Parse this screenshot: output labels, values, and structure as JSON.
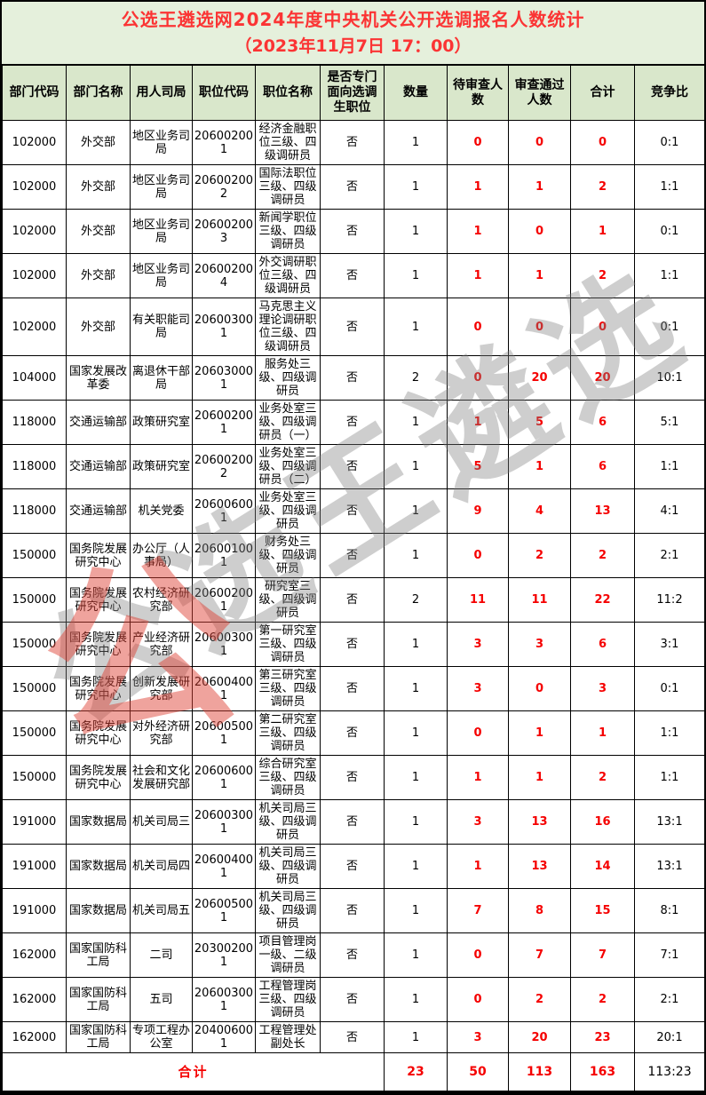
{
  "title": {
    "line1": "公选王遴选网2024年度中央机关公开选调报名人数统计",
    "line2": "（2023年11月7日 17：00）"
  },
  "table": {
    "headers": [
      "部门代码",
      "部门名称",
      "用人司局",
      "职位代码",
      "职位名称",
      "是否专门面向选调生职位",
      "数量",
      "待审查人数",
      "审查通过人数",
      "合计",
      "竞争比"
    ],
    "col_keys": [
      "dept-code",
      "dept-name",
      "bureau",
      "position-code",
      "position-name",
      "special-flag",
      "quantity",
      "pending-count",
      "passed-count",
      "total-count",
      "ratio"
    ],
    "rows": [
      [
        "102000",
        "外交部",
        "地区业务司局",
        "206002001",
        "经济金融职位三级、四级调研员",
        "否",
        "1",
        "0",
        "0",
        "0",
        "0:1"
      ],
      [
        "102000",
        "外交部",
        "地区业务司局",
        "206002002",
        "国际法职位三级、四级调研员",
        "否",
        "1",
        "1",
        "1",
        "2",
        "1:1"
      ],
      [
        "102000",
        "外交部",
        "地区业务司局",
        "206002003",
        "新闻学职位三级、四级调研员",
        "否",
        "1",
        "1",
        "0",
        "1",
        "0:1"
      ],
      [
        "102000",
        "外交部",
        "地区业务司局",
        "206002004",
        "外交调研职位三级、四级调研员",
        "否",
        "1",
        "1",
        "1",
        "2",
        "1:1"
      ],
      [
        "102000",
        "外交部",
        "有关职能司局",
        "206003001",
        "马克思主义理论调研职位三级、四级调研员",
        "否",
        "1",
        "0",
        "0",
        "0",
        "0:1"
      ],
      [
        "104000",
        "国家发展改革委",
        "离退休干部局",
        "206030001",
        "服务处三级、四级调研员",
        "否",
        "2",
        "0",
        "20",
        "20",
        "10:1"
      ],
      [
        "118000",
        "交通运输部",
        "政策研究室",
        "206002001",
        "业务处室三级、四级调研员（一）",
        "否",
        "1",
        "1",
        "5",
        "6",
        "5:1"
      ],
      [
        "118000",
        "交通运输部",
        "政策研究室",
        "206002002",
        "业务处室三级、四级调研员（二）",
        "否",
        "1",
        "5",
        "1",
        "6",
        "1:1"
      ],
      [
        "118000",
        "交通运输部",
        "机关党委",
        "206006001",
        "业务处室三级、四级调研员",
        "否",
        "1",
        "9",
        "4",
        "13",
        "4:1"
      ],
      [
        "150000",
        "国务院发展研究中心",
        "办公厅（人事局）",
        "206001001",
        "财务处三级、四级调研员",
        "否",
        "1",
        "0",
        "2",
        "2",
        "2:1"
      ],
      [
        "150000",
        "国务院发展研究中心",
        "农村经济研究部",
        "206002001",
        "研究室三级、四级调研员",
        "否",
        "2",
        "11",
        "11",
        "22",
        "11:2"
      ],
      [
        "150000",
        "国务院发展研究中心",
        "产业经济研究部",
        "206003001",
        "第一研究室三级、四级调研员",
        "否",
        "1",
        "3",
        "3",
        "6",
        "3:1"
      ],
      [
        "150000",
        "国务院发展研究中心",
        "创新发展研究部",
        "206004001",
        "第三研究室三级、四级调研员",
        "否",
        "1",
        "3",
        "0",
        "3",
        "0:1"
      ],
      [
        "150000",
        "国务院发展研究中心",
        "对外经济研究部",
        "206005001",
        "第二研究室三级、四级调研员",
        "否",
        "1",
        "0",
        "1",
        "1",
        "1:1"
      ],
      [
        "150000",
        "国务院发展研究中心",
        "社会和文化发展研究部",
        "206006001",
        "综合研究室三级、四级调研员",
        "否",
        "1",
        "1",
        "1",
        "2",
        "1:1"
      ],
      [
        "191000",
        "国家数据局",
        "机关司局三",
        "206003001",
        "机关司局三级、四级调研员",
        "否",
        "1",
        "3",
        "13",
        "16",
        "13:1"
      ],
      [
        "191000",
        "国家数据局",
        "机关司局四",
        "206004001",
        "机关司局三级、四级调研员",
        "否",
        "1",
        "1",
        "13",
        "14",
        "13:1"
      ],
      [
        "191000",
        "国家数据局",
        "机关司局五",
        "206005001",
        "机关司局三级、四级调研员",
        "否",
        "1",
        "7",
        "8",
        "15",
        "8:1"
      ],
      [
        "162000",
        "国家国防科工局",
        "二司",
        "203002001",
        "项目管理岗一级、二级调研员",
        "否",
        "1",
        "0",
        "7",
        "7",
        "7:1"
      ],
      [
        "162000",
        "国家国防科工局",
        "五司",
        "206003001",
        "工程管理岗三级、四级调研员",
        "否",
        "1",
        "0",
        "2",
        "2",
        "2:1"
      ],
      [
        "162000",
        "国家国防科工局",
        "专项工程办公室",
        "204006001",
        "工程管理处副处长",
        "否",
        "1",
        "3",
        "20",
        "23",
        "20:1"
      ]
    ],
    "summary": {
      "label": "合计",
      "quantity": "23",
      "pending": "50",
      "passed": "113",
      "total": "163",
      "ratio": "113:23"
    }
  },
  "watermark": {
    "diagonal_text": "公选王遴选",
    "logo_glyph": "公"
  },
  "colors": {
    "page_green": "#e5f0dc",
    "header_green": "#d9e7cb",
    "accent_red": "#f50000",
    "title_red": "#fb3434",
    "border_black": "#000000"
  }
}
